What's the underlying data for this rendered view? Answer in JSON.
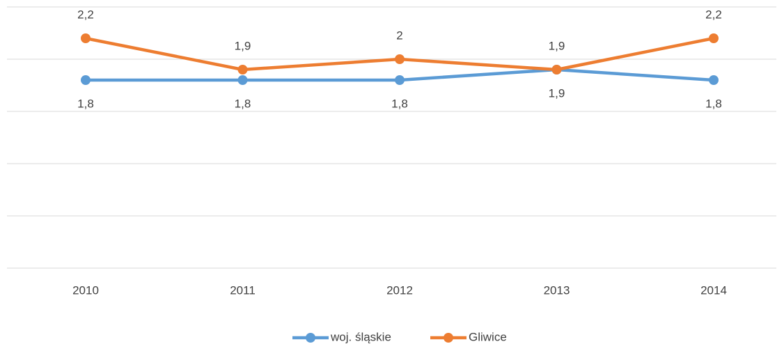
{
  "chart_data": {
    "type": "line",
    "categories": [
      "2010",
      "2011",
      "2012",
      "2013",
      "2014"
    ],
    "series": [
      {
        "name": "woj. śląskie",
        "color": "#5b9bd5",
        "values": [
          1.8,
          1.8,
          1.8,
          1.9,
          1.8
        ],
        "value_labels": [
          "1,8",
          "1,8",
          "1,8",
          "1,9",
          "1,8"
        ],
        "label_position": "below"
      },
      {
        "name": "Gliwice",
        "color": "#ed7d31",
        "values": [
          2.2,
          1.9,
          2,
          1.9,
          2.2
        ],
        "value_labels": [
          "2,2",
          "1,9",
          "2",
          "1,9",
          "2,2"
        ],
        "label_position": "above"
      }
    ],
    "ylim": [
      0,
      2.5
    ],
    "yticks": [
      0,
      0.5,
      1,
      1.5,
      2,
      2.5
    ],
    "grid": true,
    "legend": "bottom"
  }
}
